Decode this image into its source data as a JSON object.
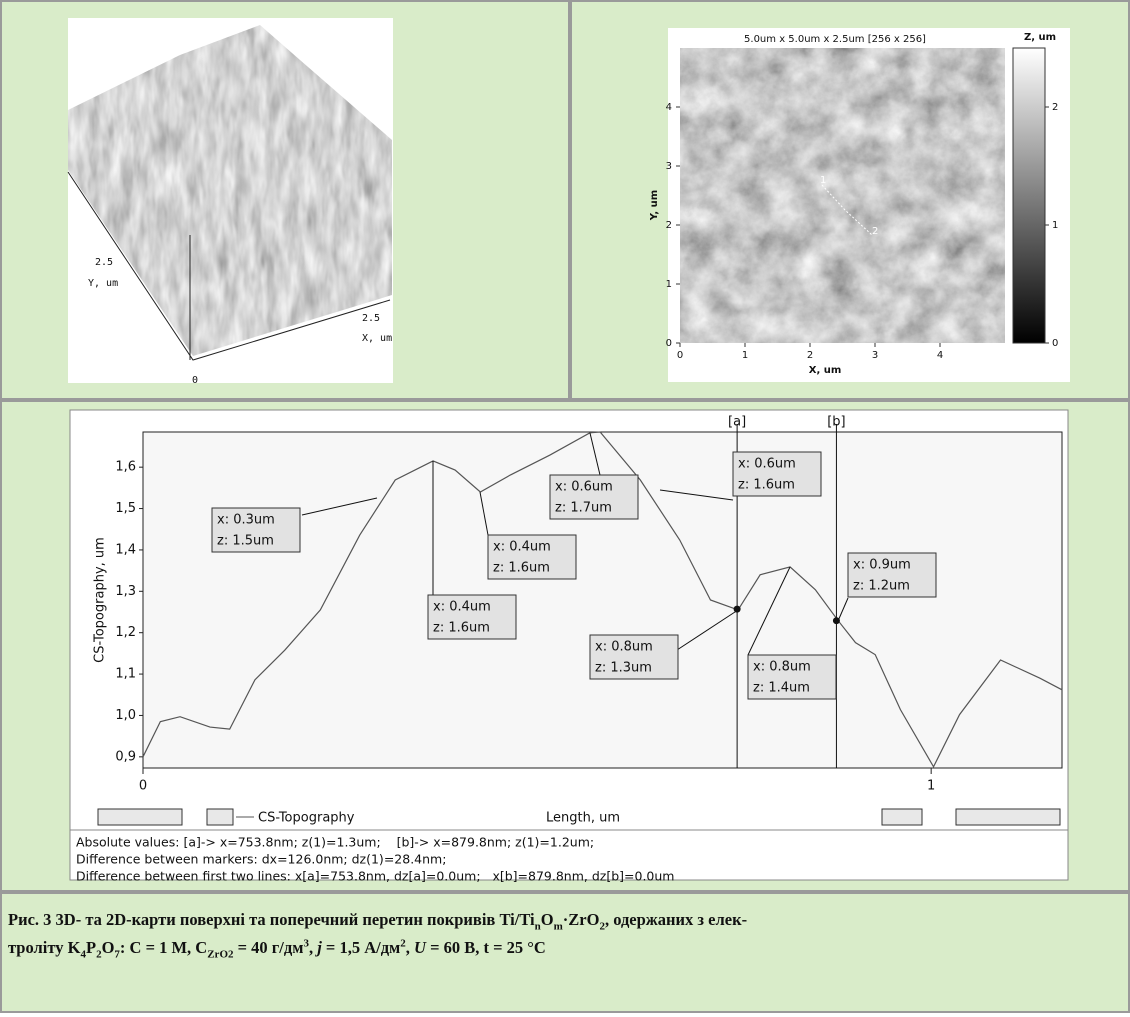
{
  "afm_3d": {
    "y_tick": "2.5",
    "y_label": "Y, um",
    "x_tick": "2.5",
    "x_label": "X, um",
    "origin": "0"
  },
  "afm_map": {
    "title": "5.0um x 5.0um x 2.5um [256 x 256]",
    "x_label": "X, um",
    "y_label": "Y, um",
    "xlim": [
      0,
      5
    ],
    "ylim": [
      0,
      5
    ],
    "xticks": [
      0,
      1,
      2,
      3,
      4
    ],
    "yticks": [
      0,
      1,
      2,
      3,
      4
    ],
    "colorbar_label": "Z, um",
    "colorbar_lim": [
      0,
      2.5
    ],
    "colorbar_ticks": [
      0,
      1,
      2
    ],
    "section_points": [
      "1",
      "2"
    ]
  },
  "chart_data": {
    "type": "line",
    "y_label": "CS-Topography, um",
    "x_label": "Length, um",
    "xlim": [
      0,
      1.166
    ],
    "ylim": [
      0.873,
      1.685
    ],
    "xticks": [
      0,
      1
    ],
    "yticks": [
      {
        "value": 0.9,
        "label": "0,9"
      },
      {
        "value": 1.0,
        "label": "1,0"
      },
      {
        "value": 1.1,
        "label": "1,1"
      },
      {
        "value": 1.2,
        "label": "1,2"
      },
      {
        "value": 1.3,
        "label": "1,3"
      },
      {
        "value": 1.4,
        "label": "1,4"
      },
      {
        "value": 1.5,
        "label": "1,5"
      },
      {
        "value": 1.6,
        "label": "1,6"
      }
    ],
    "x": [
      0,
      0.022,
      0.047,
      0.085,
      0.11,
      0.142,
      0.18,
      0.225,
      0.275,
      0.32,
      0.368,
      0.396,
      0.428,
      0.466,
      0.516,
      0.567,
      0.58,
      0.631,
      0.681,
      0.72,
      0.755,
      0.783,
      0.821,
      0.853,
      0.882,
      0.904,
      0.929,
      0.961,
      1.003,
      1.036,
      1.088,
      1.138,
      1.166
    ],
    "series": [
      {
        "name": "CS-Topography",
        "color": "#555555",
        "values": [
          0.9,
          0.985,
          0.997,
          0.972,
          0.967,
          1.086,
          1.158,
          1.255,
          1.436,
          1.569,
          1.615,
          1.593,
          1.54,
          1.581,
          1.629,
          1.683,
          1.685,
          1.569,
          1.424,
          1.279,
          1.255,
          1.34,
          1.359,
          1.304,
          1.229,
          1.176,
          1.147,
          1.014,
          0.876,
          1.002,
          1.134,
          1.09,
          1.062
        ]
      }
    ],
    "markers": [
      {
        "label": "[a]",
        "x": 0.7538,
        "z": 1.257
      },
      {
        "label": "[b]",
        "x": 0.8798,
        "z": 1.229
      }
    ],
    "annotations": [
      {
        "x_text": "x: 0.3um",
        "z_text": "z: 1.5um"
      },
      {
        "x_text": "x: 0.4um",
        "z_text": "z: 1.6um"
      },
      {
        "x_text": "x: 0.4um",
        "z_text": "z: 1.6um"
      },
      {
        "x_text": "x: 0.6um",
        "z_text": "z: 1.7um"
      },
      {
        "x_text": "x: 0.6um",
        "z_text": "z: 1.6um"
      },
      {
        "x_text": "x: 0.8um",
        "z_text": "z: 1.3um"
      },
      {
        "x_text": "x: 0.8um",
        "z_text": "z: 1.4um"
      },
      {
        "x_text": "x: 0.9um",
        "z_text": "z: 1.2um"
      }
    ],
    "grid": false
  },
  "status": [
    "Absolute values: [a]-> x=753.8nm; z(1)=1.3um;    [b]-> x=879.8nm; z(1)=1.2um;",
    "Difference between markers: dx=126.0nm; dz(1)=28.4nm;",
    "Difference between first two lines: x[a]=753.8nm, dz[a]=0.0um;   x[b]=879.8nm, dz[b]=0.0um"
  ],
  "caption": {
    "lines": [
      [
        "Рис. 3  3D- та 2D-карти поверхні та поперечний перетин покривів Ti/Ti",
        "n",
        "O",
        "m",
        "·ZrO",
        "2",
        ", одержаних з елек-"
      ],
      [
        "троліту K",
        "4",
        "P",
        "2",
        "O",
        "7",
        ": C = 1 M, C",
        "ZrO2",
        " = 40 г/дм",
        "3",
        ", ",
        "j",
        " = 1,5 А/дм",
        "2",
        ", ",
        "U",
        " = 60 В, t = 25 °C"
      ]
    ]
  }
}
